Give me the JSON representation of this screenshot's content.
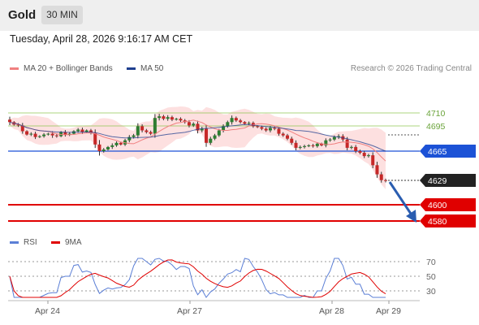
{
  "header": {
    "asset": "Gold",
    "timeframe": "30 MIN"
  },
  "timestamp": "Tuesday, April 28, 2026 9:16:17 AM CET",
  "legend": {
    "ma20_label": "MA 20 + Bollinger Bands",
    "ma50_label": "MA 50",
    "credit": "Research © 2026 Trading Central",
    "rsi_label": "RSI",
    "rsi_ma_label": "9MA"
  },
  "colors": {
    "ma20": "#f08080",
    "ma50": "#1f3f8f",
    "bands": "#fde0e0",
    "support": "#e00000",
    "pivot": "#1c52d6",
    "resistance": "#8bc34a",
    "bull": "#2e7d32",
    "bear": "#c62828",
    "rsi": "#5b7fd6",
    "rsi_ma": "#e00000"
  },
  "levels": {
    "r2": "4710",
    "r1": "4695",
    "pivot": "4665",
    "last": "4629",
    "s1": "4600",
    "s2": "4580"
  },
  "rsi_axis": [
    "70",
    "50",
    "30"
  ],
  "x_axis": [
    "Apr 24",
    "Apr 27",
    "Apr 28",
    "Apr 29"
  ],
  "chart_data": {
    "type": "candlestick",
    "instrument": "Gold",
    "timeframe": "30 MIN",
    "price_levels": [
      4710,
      4695,
      4665,
      4629,
      4600,
      4580
    ],
    "close": [
      4700,
      4697,
      4696,
      4689,
      4685,
      4686,
      4682,
      4683,
      4685,
      4686,
      4684,
      4683,
      4688,
      4685,
      4686,
      4689,
      4691,
      4688,
      4690,
      4687,
      4673,
      4665,
      4667,
      4670,
      4672,
      4675,
      4673,
      4678,
      4682,
      4684,
      4695,
      4690,
      4688,
      4686,
      4705,
      4707,
      4704,
      4706,
      4703,
      4704,
      4702,
      4700,
      4696,
      4698,
      4690,
      4692,
      4675,
      4680,
      4684,
      4690,
      4695,
      4700,
      4705,
      4702,
      4700,
      4698,
      4699,
      4695,
      4694,
      4692,
      4690,
      4693,
      4692,
      4686,
      4684,
      4680,
      4675,
      4669,
      4670,
      4671,
      4672,
      4671,
      4674,
      4672,
      4678,
      4679,
      4682,
      4683,
      4679,
      4669,
      4670,
      4665,
      4663,
      4659,
      4660,
      4648,
      4637,
      4630,
      4629
    ],
    "rsi_axis_ticks": [
      70,
      50,
      30
    ],
    "x_ticks": [
      "Apr 24",
      "Apr 27",
      "Apr 28",
      "Apr 29"
    ]
  }
}
